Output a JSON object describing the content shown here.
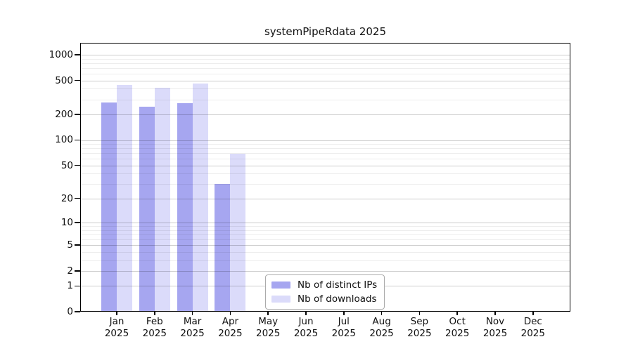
{
  "title": "systemPipeRdata 2025",
  "colors": {
    "distinct_ips_bar": "#a6a6f0",
    "downloads_bar": "#dbdbfa",
    "grid_major": "#cfcfcf",
    "grid_minor": "#ededed",
    "frame": "#000000",
    "background": "#ffffff"
  },
  "chart_data": {
    "type": "bar",
    "title": "systemPipeRdata 2025",
    "categories": [
      "Jan",
      "Feb",
      "Mar",
      "Apr",
      "May",
      "Jun",
      "Jul",
      "Aug",
      "Sep",
      "Oct",
      "Nov",
      "Dec"
    ],
    "year_label": "2025",
    "series": [
      {
        "name": "Nb of distinct IPs",
        "color": "#a6a6f0",
        "values": [
          275,
          248,
          273,
          30,
          0,
          0,
          0,
          0,
          0,
          0,
          0,
          0
        ]
      },
      {
        "name": "Nb of downloads",
        "color": "#dbdbfa",
        "values": [
          445,
          410,
          460,
          69,
          0,
          0,
          0,
          0,
          0,
          0,
          0,
          0
        ]
      }
    ],
    "xlabel": "",
    "ylabel": "",
    "y_scale": "log10(value+1)",
    "y_ticks": [
      0,
      1,
      2,
      5,
      10,
      20,
      50,
      100,
      200,
      500,
      1000
    ],
    "y_minor_ticks": [
      3,
      4,
      6,
      7,
      8,
      9,
      30,
      40,
      60,
      70,
      80,
      90,
      300,
      400,
      600,
      700,
      800,
      900
    ],
    "ylim": [
      0,
      1377
    ],
    "grid": true,
    "grid_on_top_of_bars": true,
    "legend_position": "inside-bottom-center"
  }
}
